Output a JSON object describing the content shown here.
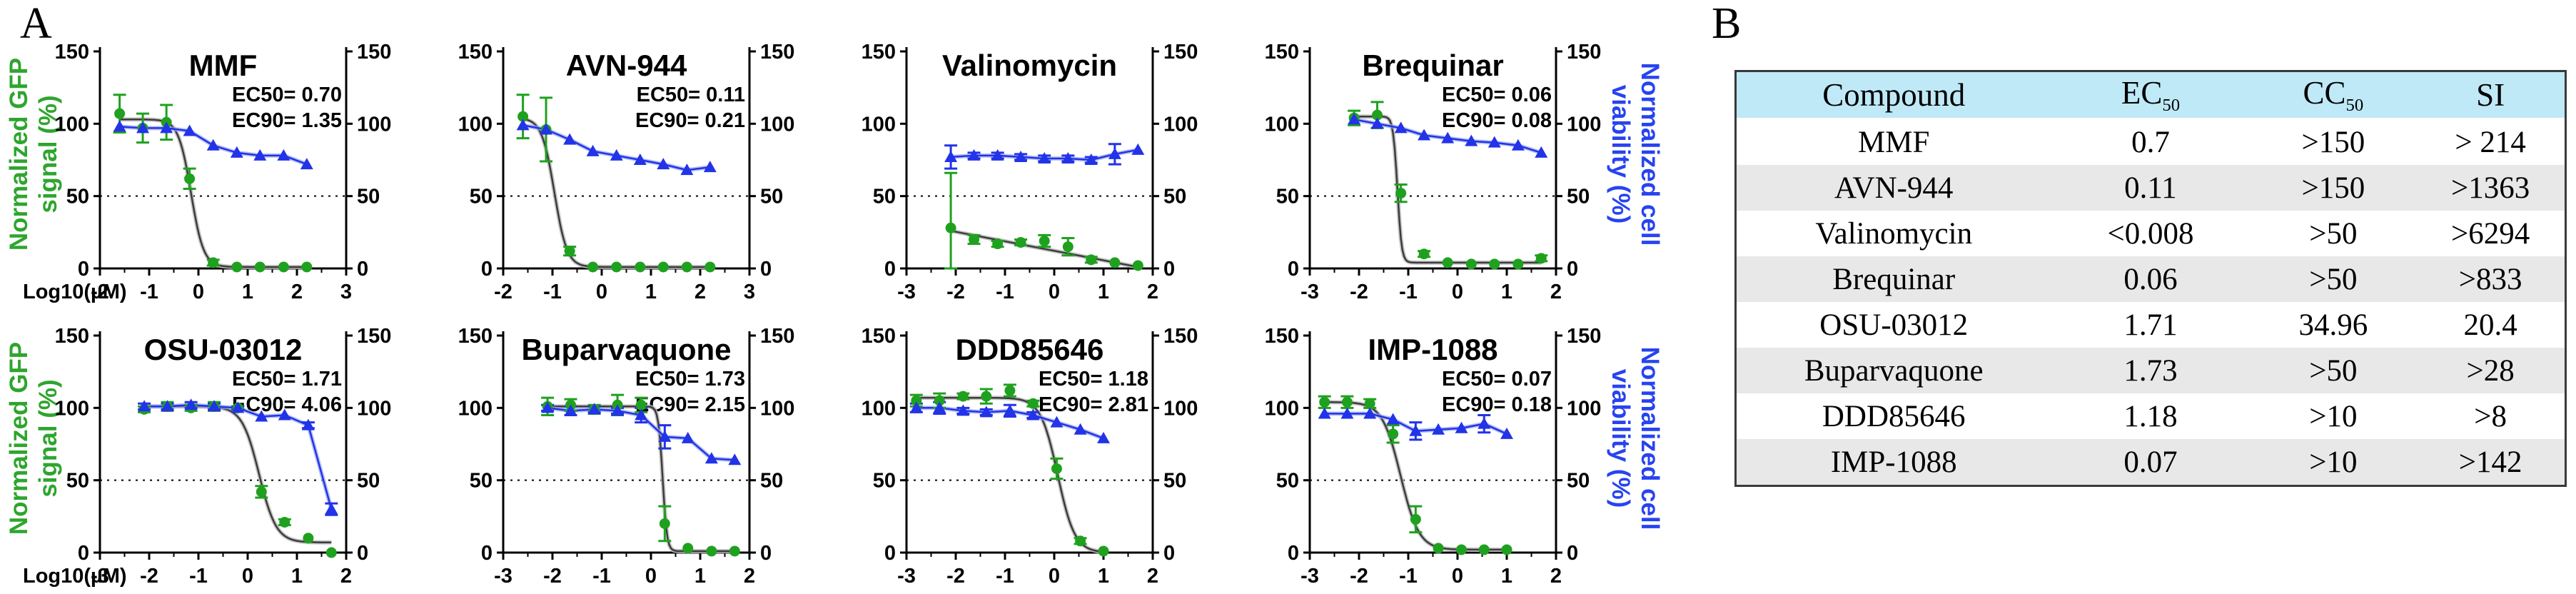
{
  "panel_a": {
    "label": "A",
    "left_axis_label": "Normalized GFP signal (%)",
    "right_axis_label": "Normalized cell viability (%)",
    "x_axis_label": "Log10(µM)"
  },
  "chart_data": {
    "type": "line",
    "description": "Dose-response curves: normalized GFP signal (green circles, black fit) and normalized cell viability (blue triangles) versus Log10 compound concentration (µM); dotted line at 50%",
    "y_ticks": [
      0,
      50,
      100,
      150
    ],
    "y_max": 150,
    "dashed_line_y": 50,
    "plots": [
      {
        "title": "MMF",
        "ec50": "EC50= 0.70",
        "ec90": "EC90= 1.35",
        "xmin": -2,
        "xmax": 3,
        "xticks": [
          -2,
          -1,
          0,
          1,
          2,
          3
        ],
        "show_x_prefix": true,
        "gfp": {
          "x": [
            -1.6,
            -1.13,
            -0.65,
            -0.18,
            0.3,
            0.78,
            1.25,
            1.73,
            2.2
          ],
          "y": [
            107,
            97,
            101,
            62,
            4,
            1,
            1,
            1,
            1
          ],
          "err": [
            13,
            10,
            12,
            7,
            2,
            0,
            0,
            0,
            0
          ]
        },
        "viability": {
          "x": [
            -1.6,
            -1.13,
            -0.65,
            -0.18,
            0.3,
            0.78,
            1.25,
            1.73,
            2.2
          ],
          "y": [
            98,
            97,
            97,
            95,
            85,
            80,
            78,
            78,
            72
          ],
          "err": [
            0,
            0,
            0,
            0,
            0,
            0,
            0,
            0,
            0
          ]
        },
        "fit": {
          "type": "sigmoid",
          "top": 103,
          "bottom": 1,
          "logec50": -0.15,
          "hill": 3.4
        }
      },
      {
        "title": "AVN-944",
        "ec50": "EC50= 0.11",
        "ec90": "EC90= 0.21",
        "xmin": -2,
        "xmax": 3,
        "xticks": [
          -2,
          -1,
          0,
          1,
          2,
          3
        ],
        "show_x_prefix": false,
        "gfp": {
          "x": [
            -1.6,
            -1.13,
            -0.65,
            -0.18,
            0.3,
            0.78,
            1.25,
            1.73,
            2.2
          ],
          "y": [
            105,
            96,
            12,
            1,
            1,
            1,
            1,
            1,
            1
          ],
          "err": [
            15,
            22,
            3,
            0,
            0,
            0,
            0,
            0,
            0
          ]
        },
        "viability": {
          "x": [
            -1.6,
            -1.13,
            -0.65,
            -0.18,
            0.3,
            0.78,
            1.25,
            1.73,
            2.2
          ],
          "y": [
            99,
            96,
            89,
            81,
            78,
            75,
            72,
            68,
            70
          ],
          "err": [
            0,
            0,
            0,
            0,
            0,
            0,
            0,
            0,
            0
          ]
        },
        "fit": {
          "type": "sigmoid",
          "top": 104,
          "bottom": 1,
          "logec50": -0.96,
          "hill": 3.4
        }
      },
      {
        "title": "Valinomycin",
        "ec50": "",
        "ec90": "",
        "xmin": -3,
        "xmax": 2,
        "xticks": [
          -3,
          -2,
          -1,
          0,
          1,
          2
        ],
        "show_x_prefix": false,
        "gfp": {
          "x": [
            -2.1,
            -1.63,
            -1.15,
            -0.68,
            -0.2,
            0.28,
            0.75,
            1.23,
            1.7
          ],
          "y": [
            28,
            20,
            17,
            18,
            19,
            15,
            6,
            4,
            2
          ],
          "err": [
            38,
            3,
            2,
            2,
            4,
            6,
            2,
            0,
            0
          ]
        },
        "viability": {
          "x": [
            -2.1,
            -1.63,
            -1.15,
            -0.68,
            -0.2,
            0.28,
            0.75,
            1.23,
            1.7
          ],
          "y": [
            77,
            78,
            78,
            77,
            76,
            76,
            75,
            79,
            82
          ],
          "err": [
            8,
            2,
            2,
            2,
            2,
            2,
            2,
            7,
            0
          ]
        },
        "fit": {
          "type": "linear",
          "x1": -2.1,
          "y1": 26,
          "x2": 1.7,
          "y2": 1
        }
      },
      {
        "title": "Brequinar",
        "ec50": "EC50= 0.06",
        "ec90": "EC90= 0.08",
        "xmin": -3,
        "xmax": 2,
        "xticks": [
          -3,
          -2,
          -1,
          0,
          1,
          2
        ],
        "show_x_prefix": false,
        "gfp": {
          "x": [
            -2.1,
            -1.63,
            -1.15,
            -0.68,
            -0.2,
            0.28,
            0.75,
            1.23,
            1.7
          ],
          "y": [
            104,
            106,
            52,
            10,
            4,
            3,
            3,
            3,
            7
          ],
          "err": [
            5,
            9,
            6,
            2,
            0,
            0,
            0,
            0,
            2
          ]
        },
        "viability": {
          "x": [
            -2.1,
            -1.63,
            -1.15,
            -0.68,
            -0.2,
            0.28,
            0.75,
            1.23,
            1.7
          ],
          "y": [
            103,
            100,
            97,
            92,
            90,
            88,
            87,
            85,
            80
          ],
          "err": [
            0,
            0,
            0,
            0,
            0,
            0,
            0,
            0,
            0
          ]
        },
        "fit": {
          "type": "sigmoid",
          "top": 105,
          "bottom": 4,
          "logec50": -1.22,
          "hill": 10
        }
      },
      {
        "title": "OSU-03012",
        "ec50": "EC50= 1.71",
        "ec90": "EC90= 4.06",
        "xmin": -3,
        "xmax": 2,
        "xticks": [
          -3,
          -2,
          -1,
          0,
          1,
          2
        ],
        "show_x_prefix": true,
        "gfp": {
          "x": [
            -2.1,
            -1.63,
            -1.15,
            -0.68,
            -0.2,
            0.28,
            0.75,
            1.23,
            1.7
          ],
          "y": [
            99,
            101,
            100,
            101,
            100,
            42,
            21,
            10,
            0
          ],
          "err": [
            2,
            3,
            2,
            3,
            1,
            4,
            2,
            0,
            0
          ]
        },
        "viability": {
          "x": [
            -2.1,
            -1.63,
            -1.15,
            -0.68,
            -0.2,
            0.28,
            0.75,
            1.23,
            1.7
          ],
          "y": [
            101,
            101,
            102,
            101,
            100,
            94,
            95,
            88,
            30
          ],
          "err": [
            2,
            2,
            2,
            2,
            1,
            0,
            0,
            2,
            4
          ]
        },
        "fit": {
          "type": "sigmoid",
          "top": 101,
          "bottom": 7,
          "logec50": 0.233,
          "hill": 2.5
        }
      },
      {
        "title": "Buparvaquone",
        "ec50": "EC50= 1.73",
        "ec90": "EC90= 2.15",
        "xmin": -3,
        "xmax": 2,
        "xticks": [
          -3,
          -2,
          -1,
          0,
          1,
          2
        ],
        "show_x_prefix": false,
        "gfp": {
          "x": [
            -2.1,
            -1.63,
            -1.15,
            -0.68,
            -0.2,
            0.28,
            0.75,
            1.23,
            1.7
          ],
          "y": [
            101,
            102,
            99,
            102,
            102,
            20,
            3,
            1,
            1
          ],
          "err": [
            6,
            4,
            3,
            7,
            5,
            12,
            0,
            0,
            0
          ]
        },
        "viability": {
          "x": [
            -2.1,
            -1.63,
            -1.15,
            -0.68,
            -0.2,
            0.28,
            0.75,
            1.23,
            1.7
          ],
          "y": [
            100,
            98,
            99,
            98,
            95,
            80,
            79,
            65,
            64
          ],
          "err": [
            2,
            3,
            2,
            2,
            5,
            8,
            0,
            0,
            0
          ]
        },
        "fit": {
          "type": "sigmoid",
          "top": 101,
          "bottom": 1,
          "logec50": 0.238,
          "hill": 10
        }
      },
      {
        "title": "DDD85646",
        "ec50": "EC50= 1.18",
        "ec90": "EC90= 2.81",
        "xmin": -3,
        "xmax": 2,
        "xticks": [
          -3,
          -2,
          -1,
          0,
          1,
          2
        ],
        "show_x_prefix": false,
        "gfp": {
          "x": [
            -2.8,
            -2.33,
            -1.85,
            -1.38,
            -0.9,
            -0.43,
            0.05,
            0.53,
            1.0
          ],
          "y": [
            105,
            105,
            108,
            108,
            112,
            103,
            58,
            8,
            1
          ],
          "err": [
            4,
            5,
            2,
            5,
            4,
            2,
            7,
            2,
            0
          ]
        },
        "viability": {
          "x": [
            -2.8,
            -2.33,
            -1.85,
            -1.38,
            -0.9,
            -0.43,
            0.05,
            0.53,
            1.0
          ],
          "y": [
            100,
            100,
            98,
            97,
            98,
            95,
            90,
            85,
            79
          ],
          "err": [
            3,
            4,
            2,
            2,
            4,
            2,
            0,
            0,
            0
          ]
        },
        "fit": {
          "type": "sigmoid",
          "top": 107,
          "bottom": 0,
          "logec50": 0.072,
          "hill": 2.5
        }
      },
      {
        "title": "IMP-1088",
        "ec50": "EC50= 0.07",
        "ec90": "EC90= 0.18",
        "xmin": -3,
        "xmax": 2,
        "xticks": [
          -3,
          -2,
          -1,
          0,
          1,
          2
        ],
        "show_x_prefix": false,
        "gfp": {
          "x": [
            -2.7,
            -2.24,
            -1.78,
            -1.31,
            -0.85,
            -0.39,
            0.08,
            0.54,
            1.0
          ],
          "y": [
            104,
            104,
            103,
            82,
            23,
            3,
            2,
            2,
            2
          ],
          "err": [
            4,
            4,
            3,
            6,
            9,
            0,
            0,
            0,
            0
          ]
        },
        "viability": {
          "x": [
            -2.7,
            -2.24,
            -1.78,
            -1.31,
            -0.85,
            -0.39,
            0.08,
            0.54,
            1.0
          ],
          "y": [
            96,
            96,
            96,
            92,
            84,
            85,
            86,
            89,
            82
          ],
          "err": [
            0,
            0,
            0,
            0,
            6,
            0,
            0,
            6,
            0
          ]
        },
        "fit": {
          "type": "sigmoid",
          "top": 104,
          "bottom": 2,
          "logec50": -1.155,
          "hill": 2.33
        }
      }
    ]
  },
  "panel_b": {
    "label": "B",
    "table": {
      "headers": [
        {
          "text": "Compound",
          "sub": ""
        },
        {
          "text": "EC",
          "sub": "50"
        },
        {
          "text": "CC",
          "sub": "50"
        },
        {
          "text": "SI",
          "sub": ""
        }
      ],
      "rows": [
        [
          "MMF",
          "0.7",
          ">150",
          "> 214"
        ],
        [
          "AVN-944",
          "0.11",
          ">150",
          ">1363"
        ],
        [
          "Valinomycin",
          "<0.008",
          ">50",
          ">6294"
        ],
        [
          "Brequinar",
          "0.06",
          ">50",
          ">833"
        ],
        [
          "OSU-03012",
          "1.71",
          "34.96",
          "20.4"
        ],
        [
          "Buparvaquone",
          "1.73",
          ">50",
          ">28"
        ],
        [
          "DDD85646",
          "1.18",
          ">10",
          ">8"
        ],
        [
          "IMP-1088",
          "0.07",
          ">10",
          ">142"
        ]
      ]
    }
  },
  "colors": {
    "gfp_green": "#1fa11f",
    "viability_blue": "#2233e8",
    "viability_halo": "#9aaaf2",
    "fit_black": "#3c3c3c",
    "fit_halo": "#bdbdbd",
    "label_green": "#2ea52e",
    "label_blue": "#2743f0",
    "table_header_bg": "#bfe9f7",
    "table_row_alt": "#e8e8e8",
    "table_border": "#3a3a3a"
  }
}
